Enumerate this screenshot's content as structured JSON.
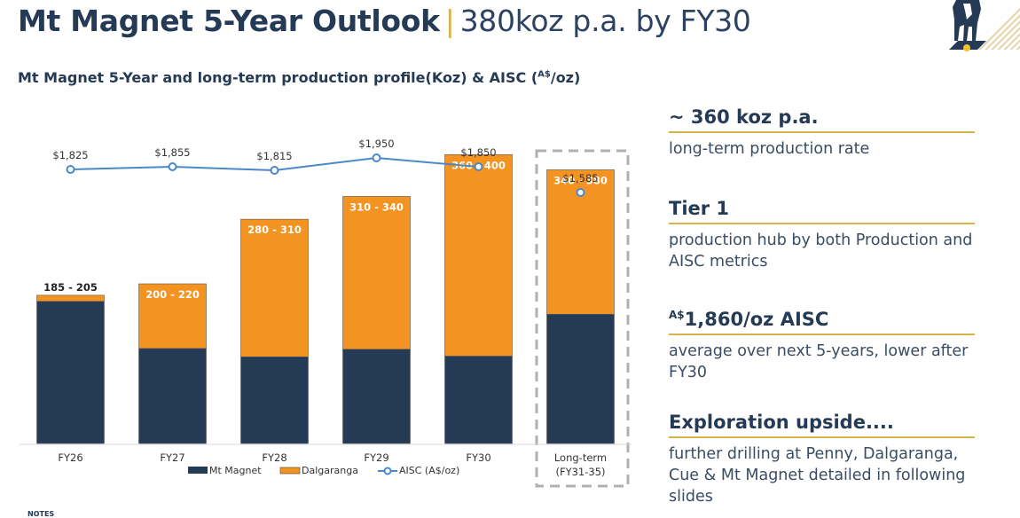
{
  "header": {
    "title_bold": "Mt Magnet 5-Year Outlook",
    "separator": "|",
    "title_light": "380koz p.a. by FY30",
    "subtitle_main": "Mt Magnet 5-Year and long-term production profile(Koz) & AISC (",
    "subtitle_sup": "A$",
    "subtitle_end": "/oz)"
  },
  "logo": {
    "icon": "horse-logo-icon"
  },
  "colors": {
    "navy": "#243a55",
    "orange": "#f39322",
    "aisc_line": "#4a88c7",
    "gold_rule": "#d8b24a"
  },
  "chart_data": {
    "type": "bar",
    "stacked": true,
    "title": "Mt Magnet 5-Year and long-term production profile(Koz) & AISC (A$/oz)",
    "categories": [
      "FY26",
      "FY27",
      "FY28",
      "FY29",
      "FY30",
      "Long-term (FY31-35)"
    ],
    "category_lines": [
      [
        "FY26"
      ],
      [
        "FY27"
      ],
      [
        "FY28"
      ],
      [
        "FY29"
      ],
      [
        "FY30"
      ],
      [
        "Long-term",
        "(FY31-35)"
      ]
    ],
    "series": [
      {
        "name": "Mt Magnet",
        "color": "#243a55",
        "values": [
          187,
          125,
          114,
          124,
          115,
          170
        ]
      },
      {
        "name": "Dalgaranga",
        "color": "#f39322",
        "values": [
          8,
          85,
          181,
          201,
          265,
          190
        ]
      }
    ],
    "total_labels": [
      "185 - 205",
      "200  - 220",
      "280 - 310",
      "310 - 340",
      "360 - 400",
      "340 - 380"
    ],
    "aisc": {
      "name": "AISC (A$/oz)",
      "values": [
        1825,
        1855,
        1815,
        1950,
        1850,
        1585
      ],
      "labels": [
        "$1,825",
        "$1,855",
        "$1,815",
        "$1,950",
        "$1,850",
        "$1,585"
      ],
      "connected_points": 5
    },
    "legend": [
      "Mt Magnet",
      "Dalgaranga",
      "AISC (A$/oz)"
    ],
    "legend_position": "bottom",
    "highlight_category": "Long-term (FY31-35)",
    "ylim": [
      0,
      420
    ],
    "aisc_ylim": [
      0,
      2100
    ],
    "xlabel": "",
    "ylabel": "",
    "grid": false
  },
  "notes_label": "NOTES",
  "highlights": [
    {
      "head": "~ 360 koz p.a.",
      "head_sup": "",
      "body": "long-term production rate"
    },
    {
      "head": "Tier 1",
      "head_sup": "",
      "body": "production hub by both Production and AISC metrics"
    },
    {
      "head": "1,860/oz AISC",
      "head_sup": "A$",
      "body": "average over next 5-years, lower after FY30"
    },
    {
      "head": "Exploration upside....",
      "head_sup": "",
      "body": "further drilling at Penny, Dalgaranga, Cue & Mt Magnet detailed in following slides"
    }
  ]
}
